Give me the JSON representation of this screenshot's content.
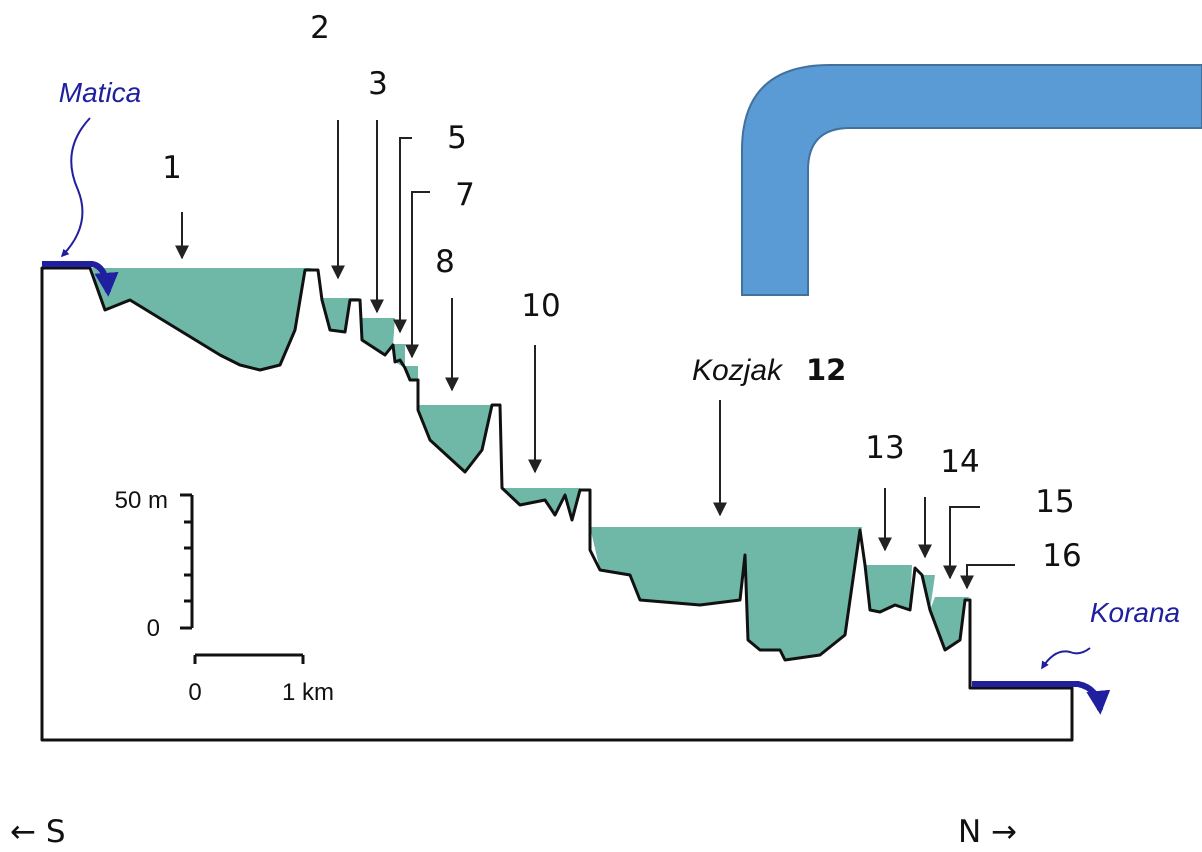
{
  "rivers": {
    "inflow": "Matica",
    "outflow": "Korana"
  },
  "lake_labels": [
    "1",
    "2",
    "3",
    "5",
    "7",
    "8",
    "10",
    "13",
    "14",
    "15",
    "16"
  ],
  "kozjak": {
    "name": "Kozjak",
    "number": "12"
  },
  "scale": {
    "height_top": "50 m",
    "height_bottom": "0",
    "distance_start": "0",
    "distance_end": "1 km"
  },
  "directions": {
    "south": "← S",
    "north": "N →"
  }
}
